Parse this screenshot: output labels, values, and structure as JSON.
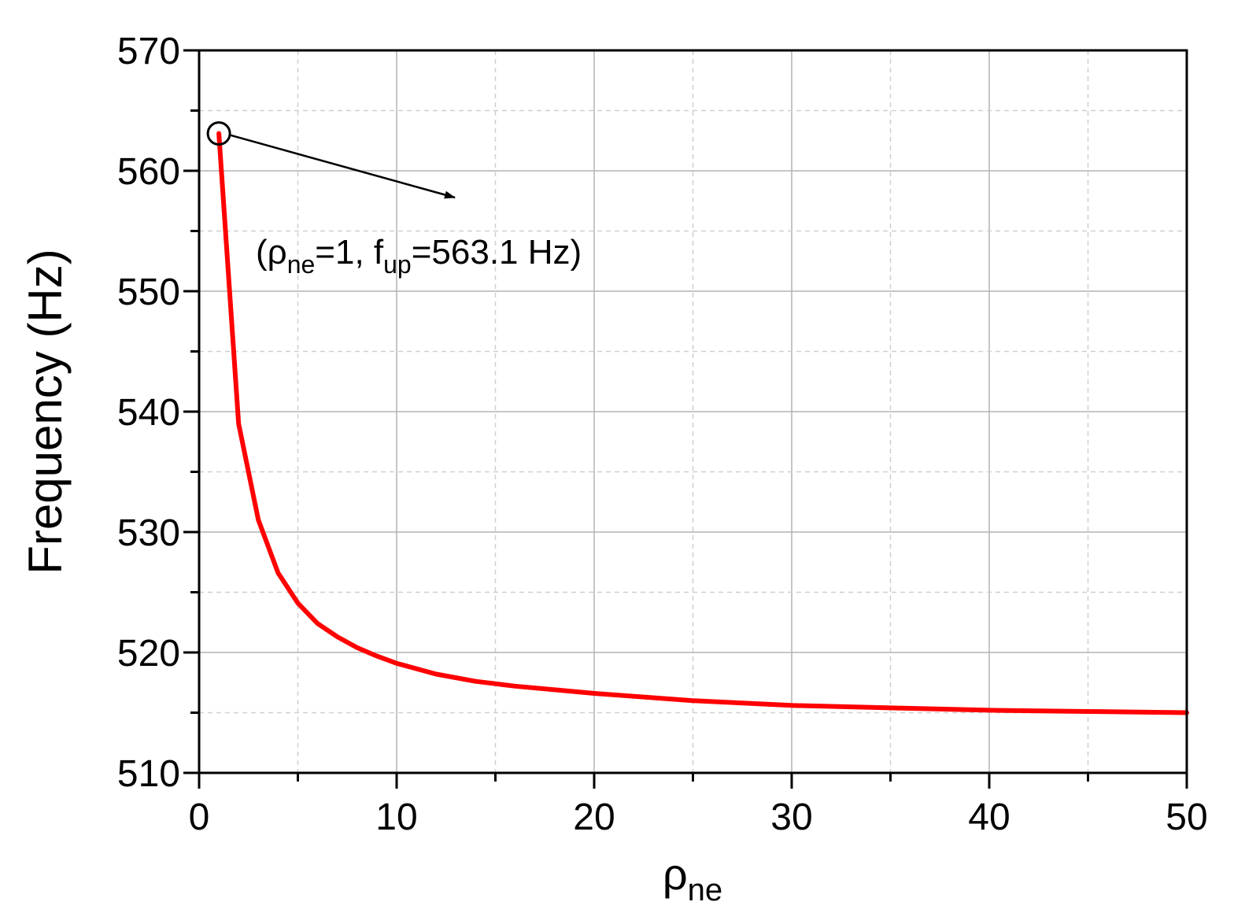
{
  "chart_data": {
    "type": "line",
    "xlabel": {
      "base": "ρ",
      "sub": "ne"
    },
    "ylabel": "Frequency (Hz)",
    "xlim": [
      0,
      50
    ],
    "ylim": [
      510,
      570
    ],
    "xticks": [
      0,
      10,
      20,
      30,
      40,
      50
    ],
    "yticks": [
      510,
      520,
      530,
      540,
      550,
      560,
      570
    ],
    "grid": true,
    "series": [
      {
        "color": "#ff0000",
        "x": [
          1,
          2,
          3,
          4,
          5,
          6,
          7,
          8,
          9,
          10,
          12,
          14,
          16,
          18,
          20,
          25,
          30,
          35,
          40,
          45,
          50
        ],
        "y": [
          563.1,
          539.0,
          531.0,
          526.6,
          524.1,
          522.4,
          521.3,
          520.4,
          519.7,
          519.1,
          518.2,
          517.6,
          517.2,
          516.9,
          516.6,
          516.0,
          515.6,
          515.4,
          515.2,
          515.1,
          515.0
        ]
      }
    ],
    "annotation": {
      "marker_x": 1,
      "marker_y": 563.1,
      "parts": [
        {
          "t": "(ρ",
          "sub": false
        },
        {
          "t": "ne",
          "sub": true
        },
        {
          "t": "=1, f",
          "sub": false
        },
        {
          "t": "up",
          "sub": true
        },
        {
          "t": "=563.1 Hz)",
          "sub": false
        }
      ]
    }
  }
}
